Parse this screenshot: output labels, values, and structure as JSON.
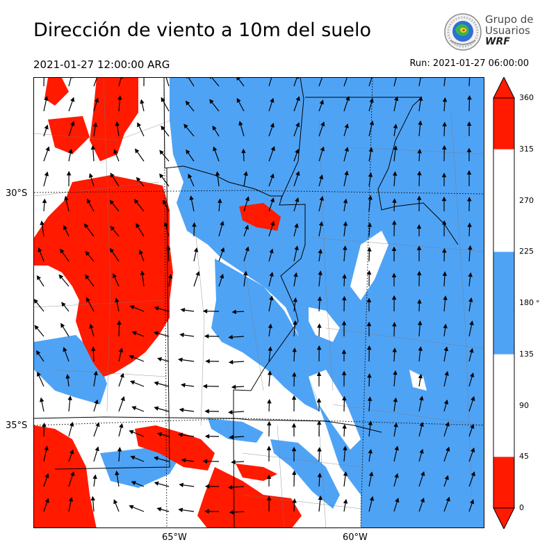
{
  "header": {
    "title": "Dirección de viento a 10m del suelo",
    "valid_time": "2021-01-27 12:00:00 ARG",
    "run_time": "Run: 2021-01-27 06:00:00"
  },
  "logo": {
    "line1": "Grupo de",
    "line2": "Usuarios",
    "line3": "WRF"
  },
  "map": {
    "lat_labels": [
      "30°S",
      "35°S"
    ],
    "lon_labels": [
      "65°W",
      "60°W"
    ]
  },
  "colorbar": {
    "ticks": [
      "360",
      "315",
      "270",
      "225",
      "180",
      "135",
      "90",
      "45",
      "0"
    ],
    "unit": "°",
    "colors": {
      "north": "#ff1a00",
      "west_east": "#ffffff",
      "south": "#4fa3f5"
    },
    "bands": [
      {
        "from": 0,
        "to": 45,
        "color": "#ff1a00"
      },
      {
        "from": 45,
        "to": 135,
        "color": "#ffffff"
      },
      {
        "from": 135,
        "to": 225,
        "color": "#4fa3f5"
      },
      {
        "from": 225,
        "to": 315,
        "color": "#ffffff"
      },
      {
        "from": 315,
        "to": 360,
        "color": "#ff1a00"
      }
    ]
  }
}
